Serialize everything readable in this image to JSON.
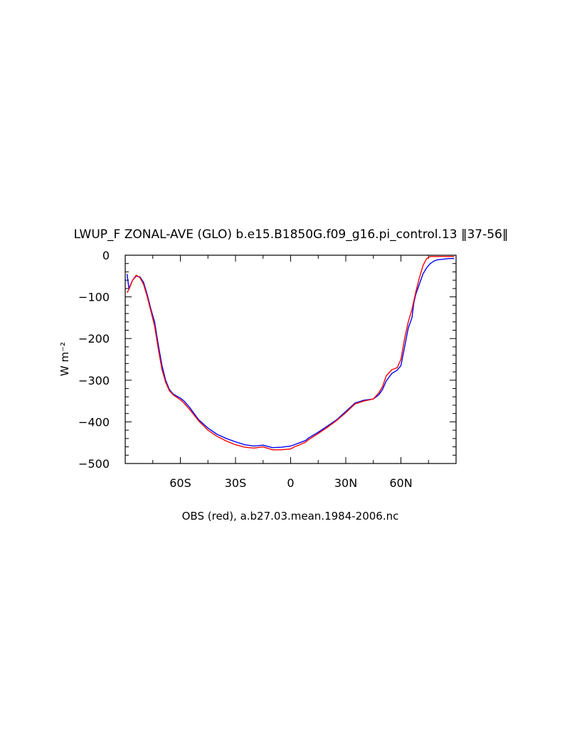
{
  "chart_data": {
    "type": "line",
    "title": "LWUP_F ZONAL-AVE (GLO) b.e15.B1850G.f09_g16.pi_control.13 ‖37-56‖",
    "xlabel": "OBS (red), a.b27.03.mean.1984-2006.nc",
    "ylabel": "W m⁻²",
    "xlim": [
      -90,
      90
    ],
    "ylim": [
      -500,
      0
    ],
    "x_ticks": [
      -60,
      -30,
      0,
      30,
      60
    ],
    "x_tick_labels": [
      "60S",
      "30S",
      "0",
      "30N",
      "60N"
    ],
    "y_ticks": [
      0,
      -100,
      -200,
      -300,
      -400,
      -500
    ],
    "y_tick_labels": [
      "0",
      "−100",
      "−200",
      "−300",
      "−400",
      "−500"
    ],
    "grid": false,
    "legend": "none",
    "series": [
      {
        "color": "#0000ff",
        "x": [
          -89,
          -88,
          -86,
          -84,
          -82,
          -80,
          -78,
          -76,
          -74,
          -72,
          -70,
          -68,
          -66,
          -64,
          -62,
          -60,
          -58,
          -55,
          -50,
          -45,
          -40,
          -35,
          -30,
          -25,
          -20,
          -15,
          -10,
          -5,
          0,
          2,
          5,
          8,
          10,
          15,
          20,
          25,
          30,
          35,
          40,
          45,
          48,
          50,
          52,
          55,
          58,
          60,
          62,
          64,
          66,
          67,
          68,
          70,
          72,
          74,
          76,
          78,
          80,
          82,
          84,
          86,
          88,
          89
        ],
        "y": [
          -45,
          -80,
          -60,
          -50,
          -52,
          -65,
          -95,
          -130,
          -160,
          -215,
          -265,
          -300,
          -322,
          -333,
          -338,
          -343,
          -350,
          -365,
          -395,
          -415,
          -430,
          -440,
          -448,
          -455,
          -458,
          -456,
          -462,
          -461,
          -458,
          -455,
          -450,
          -445,
          -438,
          -425,
          -410,
          -395,
          -375,
          -355,
          -348,
          -345,
          -335,
          -322,
          -302,
          -284,
          -276,
          -265,
          -220,
          -175,
          -150,
          -115,
          -95,
          -70,
          -45,
          -30,
          -20,
          -14,
          -11,
          -10,
          -9,
          -8,
          -8,
          -8
        ]
      },
      {
        "color": "#ff0000",
        "x": [
          -89,
          -88,
          -86,
          -84,
          -82,
          -80,
          -78,
          -76,
          -74,
          -72,
          -70,
          -68,
          -66,
          -64,
          -62,
          -60,
          -58,
          -55,
          -50,
          -45,
          -40,
          -35,
          -30,
          -25,
          -20,
          -15,
          -10,
          -5,
          0,
          2,
          5,
          8,
          10,
          15,
          20,
          25,
          30,
          35,
          40,
          45,
          48,
          50,
          52,
          55,
          58,
          60,
          62,
          64,
          66,
          67,
          68,
          70,
          72,
          74,
          76,
          78,
          80,
          82,
          84,
          86,
          88,
          89
        ],
        "y": [
          -90,
          -82,
          -60,
          -48,
          -54,
          -70,
          -100,
          -135,
          -170,
          -225,
          -275,
          -305,
          -325,
          -335,
          -341,
          -347,
          -355,
          -370,
          -398,
          -420,
          -435,
          -446,
          -455,
          -461,
          -463,
          -460,
          -467,
          -467,
          -465,
          -460,
          -455,
          -449,
          -442,
          -428,
          -413,
          -397,
          -378,
          -357,
          -350,
          -345,
          -330,
          -315,
          -290,
          -275,
          -270,
          -250,
          -200,
          -160,
          -130,
          -110,
          -90,
          -55,
          -25,
          -8,
          -3,
          -3,
          -3,
          -3,
          -3,
          -3,
          -3,
          -3
        ]
      }
    ]
  }
}
